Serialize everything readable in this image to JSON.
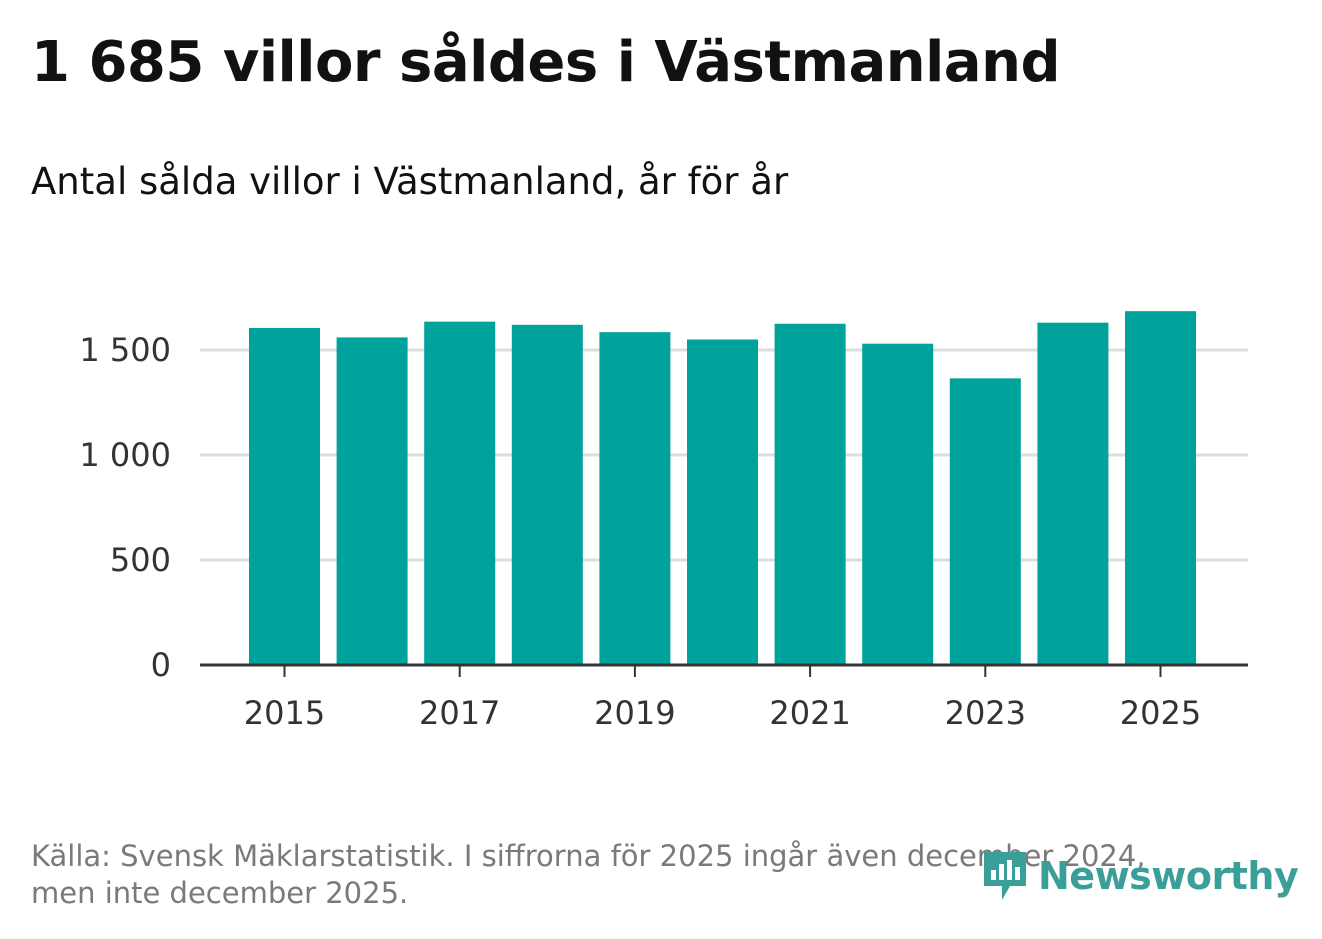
{
  "title": "1 685 villor såldes i Västmanland",
  "subtitle": "Antal sålda villor i Västmanland, år för år",
  "source_lines": [
    "Källa: Svensk Mäklarstatistik. I siffrorna för 2025 ingår även december 2024,",
    "men inte december 2025."
  ],
  "brand": {
    "name": "Newsworthy",
    "icon": "newsworthy-logo-icon"
  },
  "colors": {
    "bar": "#00a39b",
    "grid": "#dddddd",
    "axis": "#333333",
    "brand": "#3a9e99"
  },
  "chart_data": {
    "type": "bar",
    "title": "1 685 villor såldes i Västmanland",
    "subtitle": "Antal sålda villor i Västmanland, år för år",
    "xlabel": "",
    "ylabel": "",
    "categories": [
      "2015",
      "2016",
      "2017",
      "2018",
      "2019",
      "2020",
      "2021",
      "2022",
      "2023",
      "2024",
      "2025"
    ],
    "values": [
      1605,
      1560,
      1635,
      1620,
      1585,
      1550,
      1625,
      1530,
      1365,
      1630,
      1685
    ],
    "x_tick_labels": [
      "2015",
      "2017",
      "2019",
      "2021",
      "2023",
      "2025"
    ],
    "y_ticks": [
      0,
      500,
      1000,
      1500
    ],
    "y_tick_labels": [
      "0",
      "500",
      "1 000",
      "1 500"
    ],
    "ylim": [
      0,
      1700
    ],
    "grid": true,
    "legend": "none"
  }
}
